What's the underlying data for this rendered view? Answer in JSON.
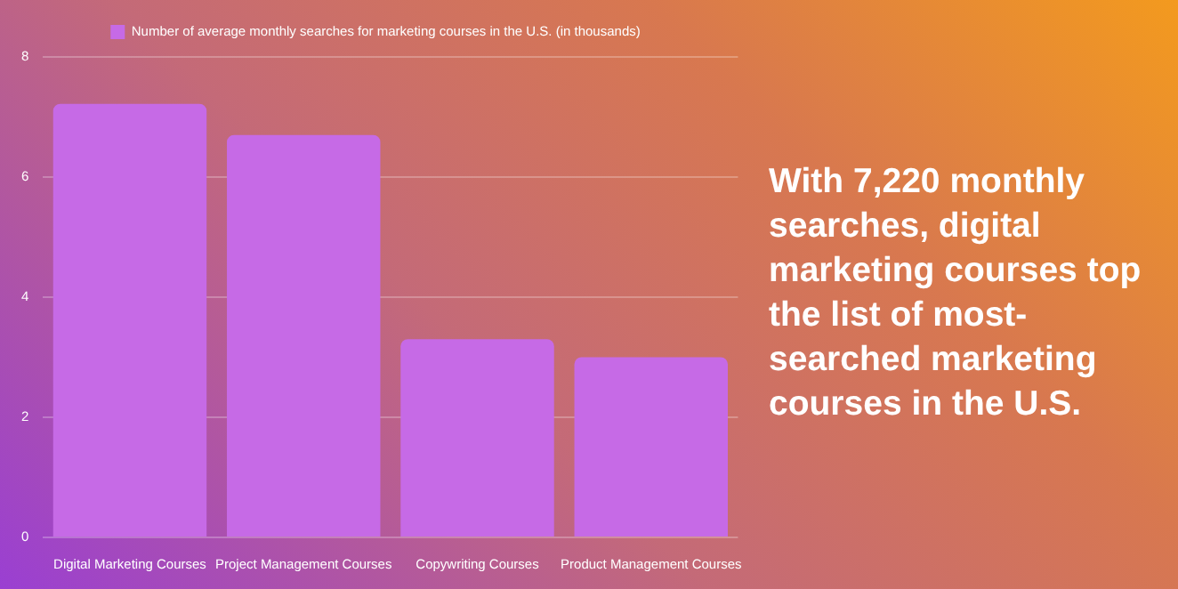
{
  "chart_data": {
    "type": "bar",
    "categories": [
      "Digital Marketing Courses",
      "Project Management Courses",
      "Copywriting Courses",
      "Product Management Courses"
    ],
    "series": [
      {
        "name": "Number of average monthly searches for marketing courses in the U.S. (in thousands)",
        "color": "#c66ae6",
        "values": [
          7.22,
          6.7,
          3.3,
          3.0
        ]
      }
    ],
    "ylim": [
      0,
      8
    ],
    "yticks": [
      0,
      2,
      4,
      6,
      8
    ],
    "grid": "y",
    "legend": "top",
    "annotations": [
      "With 7,220 monthly searches, digital marketing courses top the list of most-searched marketing courses in the U.S."
    ]
  }
}
